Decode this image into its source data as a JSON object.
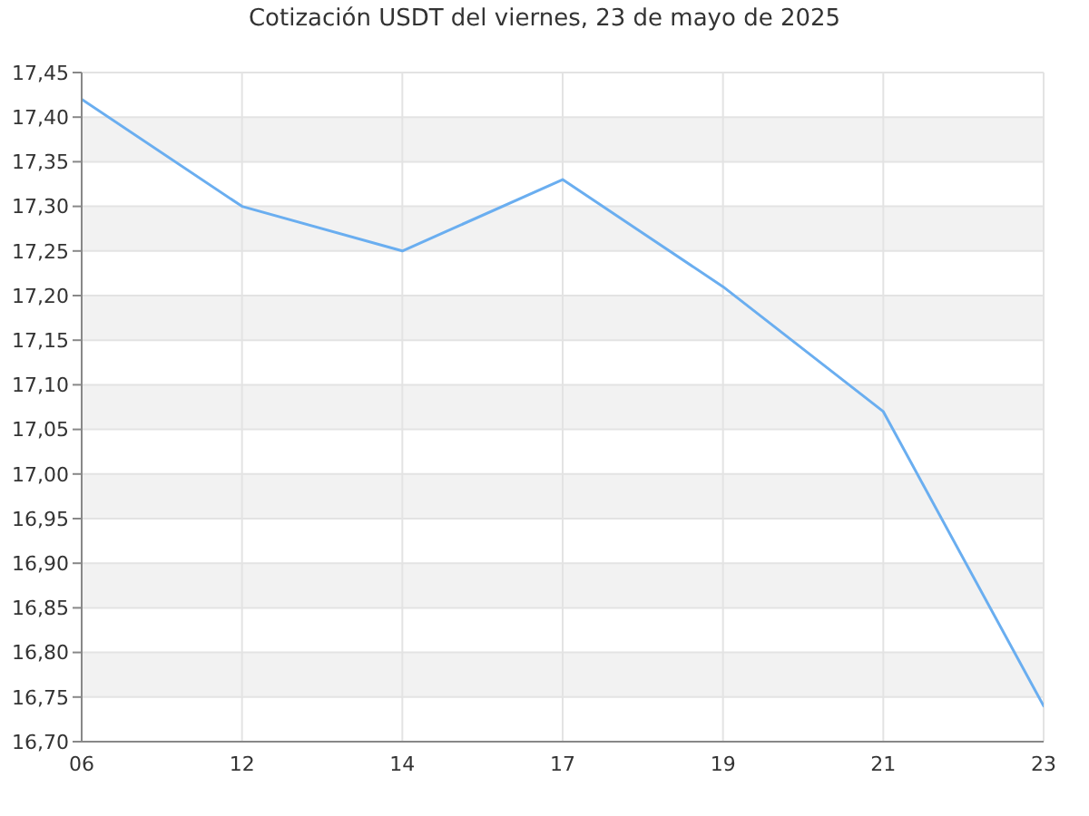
{
  "chart_data": {
    "type": "line",
    "title": "Cotización USDT del viernes, 23 de mayo de 2025",
    "categories": [
      "06",
      "12",
      "14",
      "17",
      "19",
      "21",
      "23"
    ],
    "series": [
      {
        "color": "#6aaef0",
        "values": [
          17.42,
          17.3,
          17.25,
          17.33,
          17.21,
          17.07,
          16.74
        ]
      }
    ],
    "ylim": [
      16.7,
      17.45
    ],
    "yticks": [
      {
        "value": 16.7,
        "label": "16,70"
      },
      {
        "value": 16.75,
        "label": "16,75"
      },
      {
        "value": 16.8,
        "label": "16,80"
      },
      {
        "value": 16.85,
        "label": "16,85"
      },
      {
        "value": 16.9,
        "label": "16,90"
      },
      {
        "value": 16.95,
        "label": "16,95"
      },
      {
        "value": 17.0,
        "label": "17,00"
      },
      {
        "value": 17.05,
        "label": "17,05"
      },
      {
        "value": 17.1,
        "label": "17,10"
      },
      {
        "value": 17.15,
        "label": "17,15"
      },
      {
        "value": 17.2,
        "label": "17,20"
      },
      {
        "value": 17.25,
        "label": "17,25"
      },
      {
        "value": 17.3,
        "label": "17,30"
      },
      {
        "value": 17.35,
        "label": "17,35"
      },
      {
        "value": 17.4,
        "label": "17,40"
      },
      {
        "value": 17.45,
        "label": "17,45"
      }
    ],
    "grid": true,
    "marker": "none",
    "line_style": "solid"
  }
}
